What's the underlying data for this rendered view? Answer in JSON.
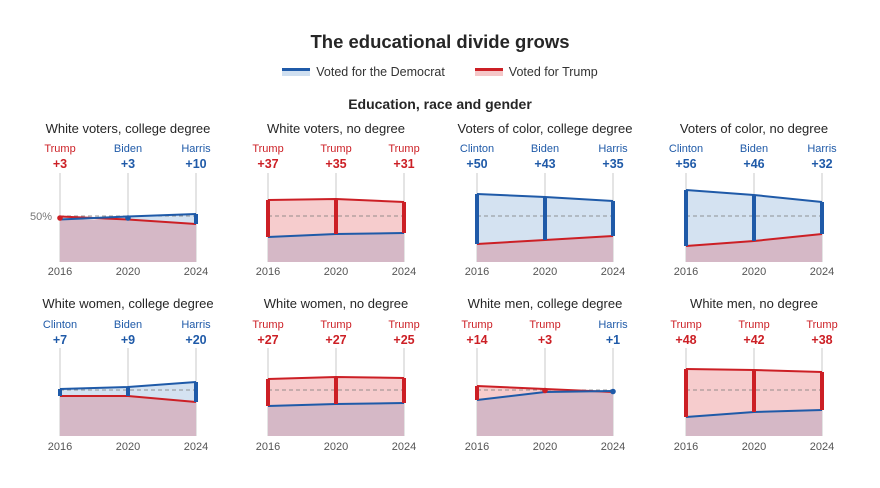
{
  "title": "The educational divide grows",
  "subtitle": "Education, race and gender",
  "legend": {
    "dem": "Voted for the Democrat",
    "rep": "Voted for Trump"
  },
  "colors": {
    "dem": "#1f5aa8",
    "rep": "#cc1f25",
    "dem_fill": "#cfdff0",
    "rep_fill": "#f5c7c8",
    "base_fill": "#d5b8c6"
  },
  "reference_label": "50%",
  "chart_data": [
    {
      "type": "area",
      "title": "White voters, college degree",
      "x": [
        "2016",
        "2020",
        "2024"
      ],
      "winners": [
        "Trump",
        "Biden",
        "Harris"
      ],
      "parties": [
        "rep",
        "dem",
        "dem"
      ],
      "margins": [
        "+3",
        "+3",
        "+10"
      ],
      "dem_share": [
        46.5,
        49.5,
        52
      ],
      "rep_share": [
        49.5,
        46.5,
        42
      ],
      "ylim": [
        0,
        100
      ]
    },
    {
      "type": "area",
      "title": "White voters, no degree",
      "x": [
        "2016",
        "2020",
        "2024"
      ],
      "winners": [
        "Trump",
        "Trump",
        "Trump"
      ],
      "parties": [
        "rep",
        "rep",
        "rep"
      ],
      "margins": [
        "+37",
        "+35",
        "+31"
      ],
      "dem_share": [
        29,
        32,
        33
      ],
      "rep_share": [
        66,
        67,
        64
      ],
      "ylim": [
        0,
        100
      ]
    },
    {
      "type": "area",
      "title": "Voters of color, college degree",
      "x": [
        "2016",
        "2020",
        "2024"
      ],
      "winners": [
        "Clinton",
        "Biden",
        "Harris"
      ],
      "parties": [
        "dem",
        "dem",
        "dem"
      ],
      "margins": [
        "+50",
        "+43",
        "+35"
      ],
      "dem_share": [
        72,
        69,
        65
      ],
      "rep_share": [
        22,
        26,
        30
      ],
      "ylim": [
        0,
        100
      ]
    },
    {
      "type": "area",
      "title": "Voters of color, no degree",
      "x": [
        "2016",
        "2020",
        "2024"
      ],
      "winners": [
        "Clinton",
        "Biden",
        "Harris"
      ],
      "parties": [
        "dem",
        "dem",
        "dem"
      ],
      "margins": [
        "+56",
        "+46",
        "+32"
      ],
      "dem_share": [
        76,
        71,
        64
      ],
      "rep_share": [
        20,
        25,
        32
      ],
      "ylim": [
        0,
        100
      ]
    },
    {
      "type": "area",
      "title": "White women, college degree",
      "x": [
        "2016",
        "2020",
        "2024"
      ],
      "winners": [
        "Clinton",
        "Biden",
        "Harris"
      ],
      "parties": [
        "dem",
        "dem",
        "dem"
      ],
      "margins": [
        "+7",
        "+9",
        "+20"
      ],
      "dem_share": [
        51,
        53,
        58
      ],
      "rep_share": [
        44,
        44,
        38
      ],
      "ylim": [
        0,
        100
      ]
    },
    {
      "type": "area",
      "title": "White women, no degree",
      "x": [
        "2016",
        "2020",
        "2024"
      ],
      "winners": [
        "Trump",
        "Trump",
        "Trump"
      ],
      "parties": [
        "rep",
        "rep",
        "rep"
      ],
      "margins": [
        "+27",
        "+27",
        "+25"
      ],
      "dem_share": [
        34,
        36,
        37
      ],
      "rep_share": [
        61,
        63,
        62
      ],
      "ylim": [
        0,
        100
      ]
    },
    {
      "type": "area",
      "title": "White men, college degree",
      "x": [
        "2016",
        "2020",
        "2024"
      ],
      "winners": [
        "Trump",
        "Trump",
        "Harris"
      ],
      "parties": [
        "rep",
        "rep",
        "dem"
      ],
      "margins": [
        "+14",
        "+3",
        "+1"
      ],
      "dem_share": [
        40,
        48,
        49
      ],
      "rep_share": [
        54,
        51,
        48
      ],
      "ylim": [
        0,
        100
      ]
    },
    {
      "type": "area",
      "title": "White men, no degree",
      "x": [
        "2016",
        "2020",
        "2024"
      ],
      "winners": [
        "Trump",
        "Trump",
        "Trump"
      ],
      "parties": [
        "rep",
        "rep",
        "rep"
      ],
      "margins": [
        "+48",
        "+42",
        "+38"
      ],
      "dem_share": [
        23,
        28,
        30
      ],
      "rep_share": [
        71,
        70,
        68
      ],
      "ylim": [
        0,
        100
      ]
    }
  ]
}
